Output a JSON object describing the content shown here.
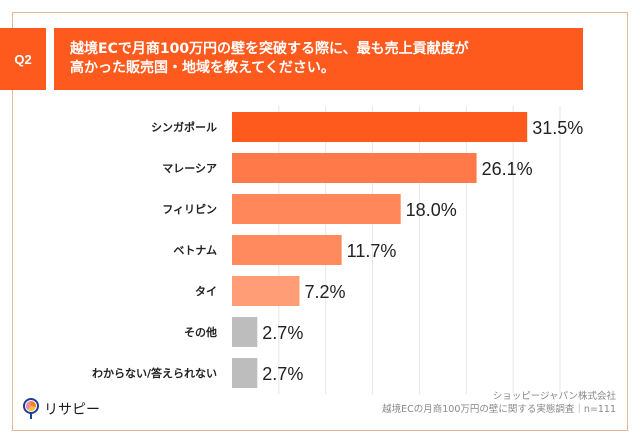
{
  "question": {
    "badge": "Q2",
    "title_line1": "越境ECで月商100万円の壁を突破する際に、最も売上貢献度が",
    "title_line2": "高かった販売国・地域を教えてください。"
  },
  "colors": {
    "accent": "#ff5a1e",
    "frame": "#e3b79b",
    "gray_bar": "#bdbdbd",
    "gridline": "#e6e6e6"
  },
  "chart_data": {
    "type": "bar",
    "orientation": "horizontal",
    "title": "越境ECで月商100万円の壁を突破する際に、最も売上貢献度が高かった販売国・地域を教えてください。",
    "xlabel": "",
    "ylabel": "",
    "xlim": [
      0,
      35
    ],
    "grid": true,
    "grid_step": 5,
    "categories": [
      "シンガポール",
      "マレーシア",
      "フィリピン",
      "ベトナム",
      "タイ",
      "その他",
      "わからない/答えられない"
    ],
    "values": [
      31.5,
      26.1,
      18.0,
      11.7,
      7.2,
      2.7,
      2.7
    ],
    "value_labels": [
      "31.5%",
      "26.1%",
      "18.0%",
      "11.7%",
      "7.2%",
      "2.7%",
      "2.7%"
    ],
    "bar_colors": [
      "#ff5a1e",
      "#ff7a48",
      "#ff875a",
      "#ff8a5e",
      "#ff9d77",
      "#bdbdbd",
      "#bdbdbd"
    ],
    "unit": "%"
  },
  "footer": {
    "logo_text": "リサピー",
    "source_company": "ショッピージャパン株式会社",
    "source_survey": "越境ECの月商100万円の壁に関する実態調査｜n=111"
  }
}
